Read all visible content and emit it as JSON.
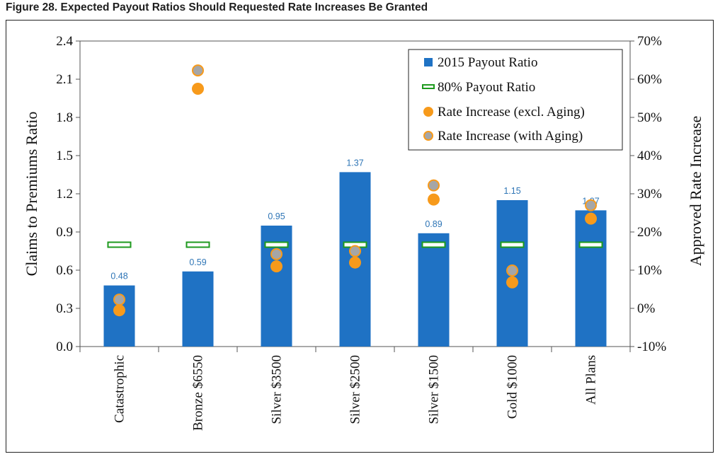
{
  "figure": {
    "title": "Figure 28.  Expected Payout Ratios Should Requested Rate Increases Be Granted"
  },
  "colors": {
    "bar": "#1f72c4",
    "benchmark_fill": "#ffffff",
    "benchmark_stroke": "#1e9a1e",
    "excl_aging": "#f79a1b",
    "with_aging_fill": "#a6a6a6",
    "with_aging_stroke": "#f79a1b",
    "label": "#2e75b6"
  },
  "chart_data": {
    "type": "bar",
    "categories": [
      "Catastrophic",
      "Bronze $6550",
      "Silver $3500",
      "Silver $2500",
      "Silver $1500",
      "Gold $1000",
      "All Plans"
    ],
    "ylabel": "Claims to Premiums Ratio",
    "y2label": "Approved Rate Increase",
    "ylim": [
      0,
      2.4
    ],
    "yticks": [
      "0.0",
      "0.3",
      "0.6",
      "0.9",
      "1.2",
      "1.5",
      "1.8",
      "2.1",
      "2.4"
    ],
    "y2lim": [
      -10,
      70
    ],
    "y2ticks": [
      "-10%",
      "0%",
      "10%",
      "20%",
      "30%",
      "40%",
      "50%",
      "60%",
      "70%"
    ],
    "grid": false,
    "legend_position": "top-right",
    "series": [
      {
        "name": "2015 Payout Ratio",
        "kind": "bar",
        "axis": "left",
        "values": [
          0.48,
          0.59,
          0.95,
          1.37,
          0.89,
          1.15,
          1.07
        ],
        "labels": [
          "0.48",
          "0.59",
          "0.95",
          "1.37",
          "0.89",
          "1.15",
          "1.07"
        ]
      },
      {
        "name": "80% Payout Ratio",
        "kind": "marker",
        "axis": "left",
        "values": [
          0.8,
          0.8,
          0.8,
          0.8,
          0.8,
          0.8,
          0.8
        ]
      },
      {
        "name": "Rate Increase (excl. Aging)",
        "kind": "scatter",
        "axis": "right",
        "values": [
          -0.5,
          57.5,
          11,
          12,
          28.5,
          6.8,
          23.5
        ]
      },
      {
        "name": "Rate Increase (with Aging)",
        "kind": "scatter",
        "axis": "right",
        "values": [
          2.3,
          62.3,
          14.2,
          15,
          32.2,
          9.9,
          27
        ]
      }
    ]
  }
}
